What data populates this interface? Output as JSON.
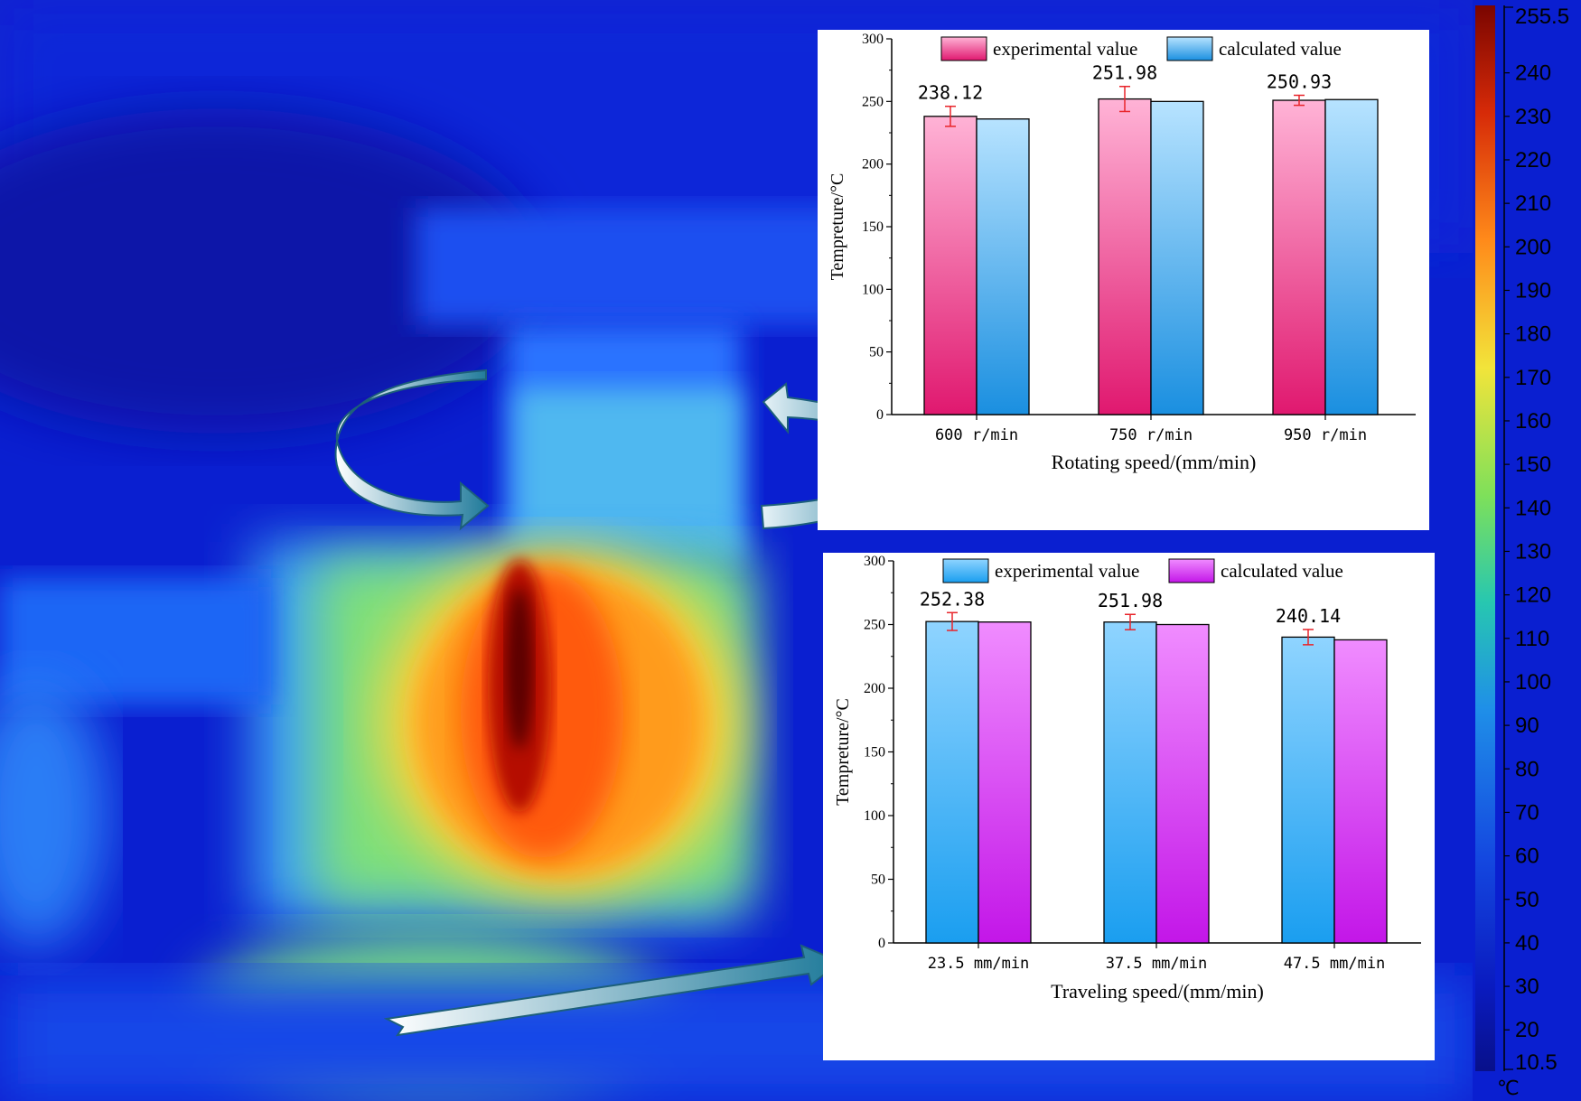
{
  "colors": {
    "pink_top": "#ffb3d6",
    "pink_bottom": "#e0186f",
    "blue_top": "#b7e3ff",
    "blue_bottom": "#1a8fe0",
    "sky_top": "#8fd4ff",
    "sky_bottom": "#1a9ef0",
    "magenta_top": "#f08cff",
    "magenta_bottom": "#c316e8",
    "error_bar": "#e8242a",
    "thermal_background": "#0a1fd0"
  },
  "colorbar": {
    "max_label": "255.5",
    "min_label": "10.5",
    "unit": "℃",
    "ticks": [
      "240",
      "230",
      "220",
      "210",
      "200",
      "190",
      "180",
      "170",
      "160",
      "150",
      "140",
      "130",
      "120",
      "110",
      "100",
      "90",
      "80",
      "70",
      "60",
      "50",
      "40",
      "30",
      "20"
    ]
  },
  "chart_data": [
    {
      "type": "bar",
      "categories": [
        "600 r/min",
        "750 r/min",
        "950 r/min"
      ],
      "series": [
        {
          "name": "experimental value",
          "values": [
            238.12,
            251.98,
            250.93
          ],
          "error": [
            8,
            10,
            4
          ]
        },
        {
          "name": "calculated value",
          "values": [
            236,
            250,
            251.5
          ]
        }
      ],
      "data_labels": [
        "238.12",
        "251.98",
        "250.93"
      ],
      "xlabel": "Rotating speed/(mm/min)",
      "ylabel": "Tempreture/°C",
      "ylim": [
        0,
        300
      ],
      "yticks": [
        "0",
        "50",
        "100",
        "150",
        "200",
        "250",
        "300"
      ],
      "legend": "top"
    },
    {
      "type": "bar",
      "categories": [
        "23.5 mm/min",
        "37.5 mm/min",
        "47.5 mm/min"
      ],
      "series": [
        {
          "name": "experimental value",
          "values": [
            252.38,
            251.98,
            240.14
          ],
          "error": [
            7,
            6,
            6
          ]
        },
        {
          "name": "calculated value",
          "values": [
            252,
            250,
            238
          ]
        }
      ],
      "data_labels": [
        "252.38",
        "251.98",
        "240.14"
      ],
      "xlabel": "Traveling speed/(mm/min)",
      "ylabel": "Tempreture/°C",
      "ylim": [
        0,
        300
      ],
      "yticks": [
        "0",
        "50",
        "100",
        "150",
        "200",
        "250",
        "300"
      ],
      "legend": "top"
    }
  ]
}
